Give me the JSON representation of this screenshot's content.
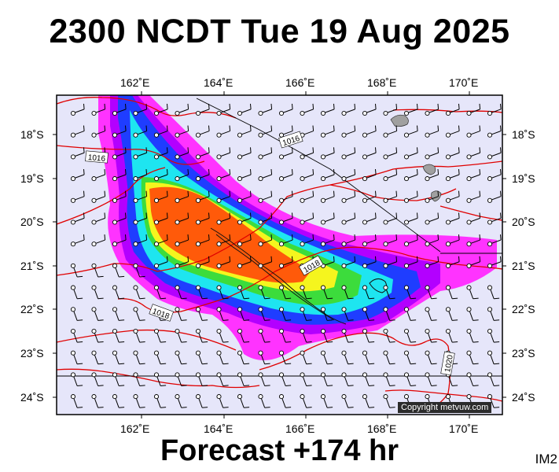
{
  "title": "2300 NCDT Tue 19 Aug 2025",
  "footer": "Forecast +174 hr",
  "model_code": "IM2",
  "copyright": "Copyright metvuw.com",
  "map": {
    "lon_range": [
      160.0,
      171.0
    ],
    "lat_range": [
      -24.4,
      -17.3
    ],
    "lon_ticks": [
      "162˚E",
      "164˚E",
      "166˚E",
      "168˚E",
      "170˚E"
    ],
    "lat_ticks": [
      "18˚S",
      "19˚S",
      "20˚S",
      "21˚S",
      "22˚S",
      "23˚S",
      "24˚S"
    ],
    "isobar_labels": [
      "1016",
      "1016",
      "1018",
      "1018",
      "1020"
    ],
    "colors": {
      "background": "#e6e6fa",
      "magenta": "#ff33ff",
      "purple": "#b300ff",
      "blue": "#1f3dff",
      "cyan": "#1ee5f0",
      "green": "#3cdc3c",
      "yellow": "#f5f51e",
      "orange": "#ff5a0a",
      "isobar": "#e00000"
    }
  }
}
